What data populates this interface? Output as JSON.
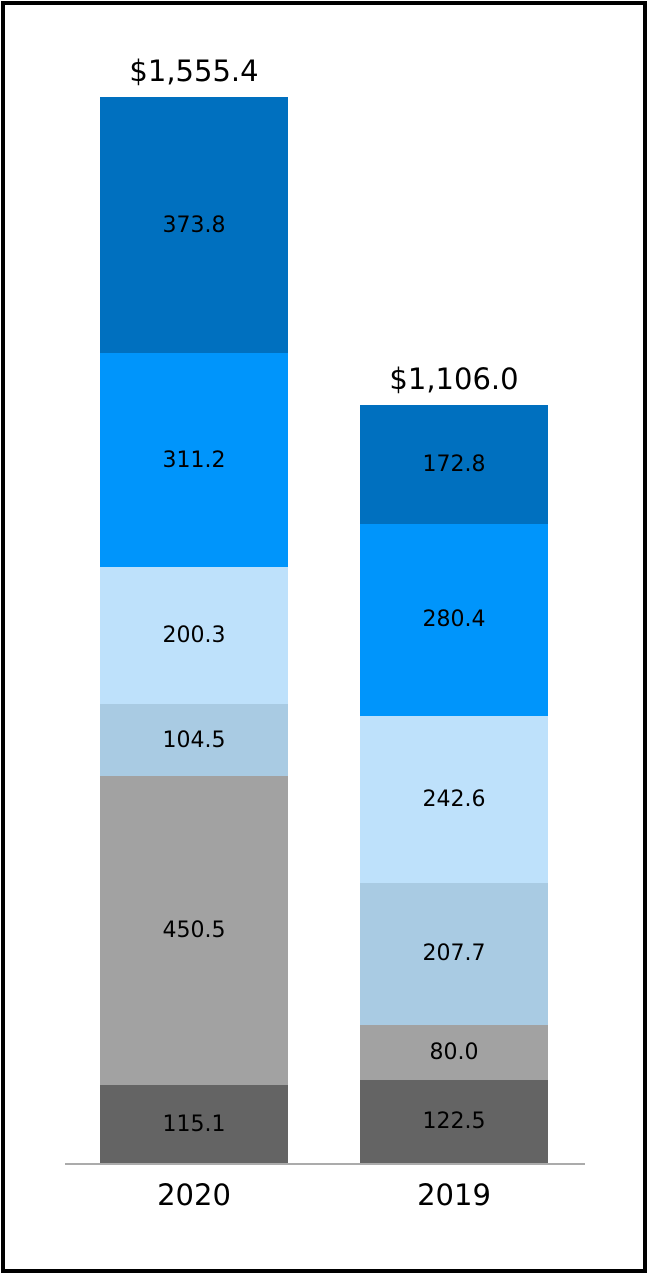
{
  "chart_data": {
    "type": "bar",
    "subtype": "stacked-vertical",
    "title": "",
    "xlabel": "",
    "ylabel": "",
    "legend": "none",
    "grid": false,
    "background": "#ffffff",
    "axis_line_color": "#ABABAB",
    "label_color": "#000000",
    "categories": [
      "2020",
      "2019"
    ],
    "totals": [
      {
        "label": "$1,555.4",
        "value": 1555.4
      },
      {
        "label": "$1,106.0",
        "value": 1106.0
      }
    ],
    "series_top_to_bottom": [
      {
        "color": "#0070BF",
        "values": [
          373.8,
          172.8
        ],
        "labels": [
          "373.8",
          "172.8"
        ]
      },
      {
        "color": "#0095FB",
        "values": [
          311.2,
          280.4
        ],
        "labels": [
          "311.2",
          "280.4"
        ]
      },
      {
        "color": "#BEE1FB",
        "values": [
          200.3,
          242.6
        ],
        "labels": [
          "200.3",
          "242.6"
        ]
      },
      {
        "color": "#A9CBE3",
        "values": [
          104.5,
          207.7
        ],
        "labels": [
          "104.5",
          "207.7"
        ]
      },
      {
        "color": "#A2A2A2",
        "values": [
          450.5,
          80.0
        ],
        "labels": [
          "450.5",
          "80.0"
        ]
      },
      {
        "color": "#646464",
        "values": [
          115.1,
          122.5
        ],
        "labels": [
          "115.1",
          "122.5"
        ]
      }
    ]
  }
}
